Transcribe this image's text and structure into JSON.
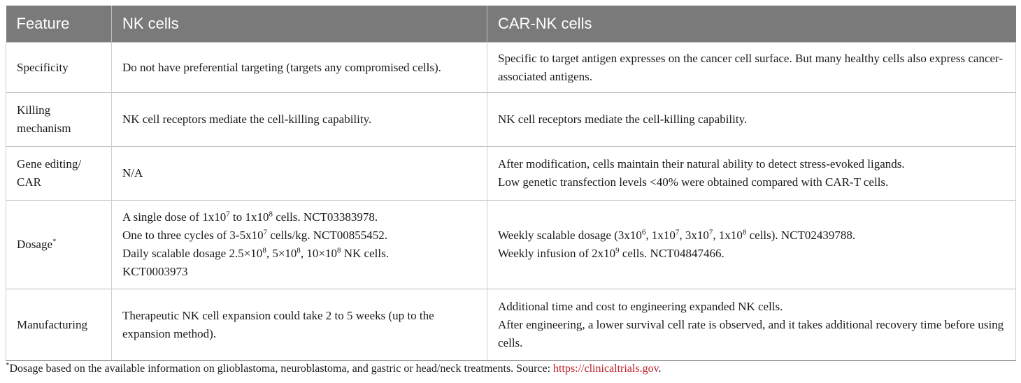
{
  "headers": [
    "Feature",
    "NK cells",
    "CAR-NK cells"
  ],
  "rows": [
    {
      "feature": "Specificity",
      "nk": [
        "Do not have preferential targeting (targets any compromised cells)."
      ],
      "carnk": [
        "Specific to target antigen expresses on the cancer cell surface. But many healthy cells also express cancer-associated antigens."
      ]
    },
    {
      "feature": "Killing mechanism",
      "nk": [
        "NK cell receptors mediate the cell-killing capability."
      ],
      "carnk": [
        "NK cell receptors mediate the cell-killing capability."
      ]
    },
    {
      "feature": "Gene editing/ CAR",
      "nk": [
        "N/A"
      ],
      "carnk": [
        "After modification, cells maintain their natural ability to detect stress-evoked ligands.",
        "Low genetic transfection levels <40% were obtained compared with CAR-T cells."
      ]
    },
    {
      "feature": "Dosage",
      "feature_sup": "*",
      "nk": [
        {
          "t1": "A single dose of 1x10",
          "s1": "7",
          "t2": " to 1x10",
          "s2": "8",
          "t3": " cells. NCT03383978."
        },
        {
          "t1": "One to three cycles of 3-5x10",
          "s1": "7",
          "t2": " cells/kg. NCT00855452."
        },
        {
          "t1": "Daily scalable dosage 2.5×10",
          "s1": "8",
          "t2": ", 5×10",
          "s2": "8",
          "t3": ", 10×10",
          "s3": "8",
          "t4": " NK cells."
        },
        {
          "t1": "KCT0003973"
        }
      ],
      "carnk": [
        {
          "t1": "Weekly scalable dosage (3x10",
          "s1": "6",
          "t2": ", 1x10",
          "s2": "7",
          "t3": ", 3x10",
          "s3": "7",
          "t4": ", 1x10",
          "s4": "8",
          "t5": " cells). NCT02439788."
        },
        {
          "t1": "Weekly infusion of 2x10",
          "s1": "9",
          "t2": " cells. NCT04847466."
        }
      ]
    },
    {
      "feature": "Manufacturing",
      "nk": [
        "Therapeutic NK cell expansion could take 2 to 5 weeks (up to the expansion method)."
      ],
      "carnk": [
        "Additional time and cost to engineering expanded NK cells.",
        "After engineering, a lower survival cell rate is observed, and it takes additional recovery time before using cells."
      ]
    }
  ],
  "footnote": {
    "mark": "*",
    "text": "Dosage based on the available information on glioblastoma, neuroblastoma, and gastric or head/neck treatments. Source: ",
    "link": "https://clinicaltrials.gov",
    "end": "."
  },
  "colors": {
    "header_bg": "#7a7a7a",
    "link": "#c0202a"
  }
}
